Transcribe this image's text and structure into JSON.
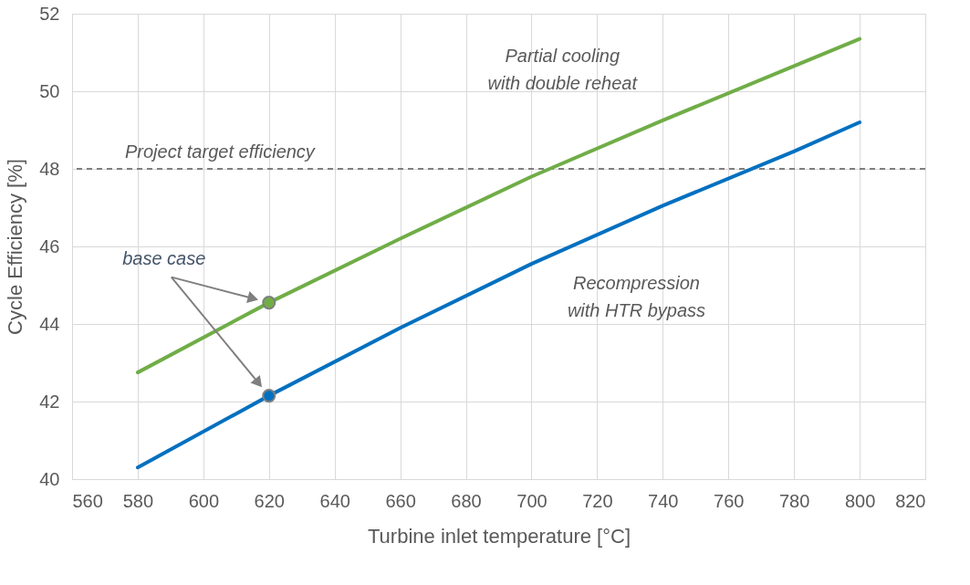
{
  "chart_data": {
    "type": "line",
    "xlabel": "Turbine inlet temperature  [°C]",
    "ylabel": "Cycle Efficiency [%]",
    "xlim": [
      560,
      820
    ],
    "xticks": [
      560,
      580,
      600,
      620,
      640,
      660,
      680,
      700,
      720,
      740,
      760,
      780,
      800,
      820
    ],
    "ylim": [
      40,
      52
    ],
    "yticks": [
      40,
      42,
      44,
      46,
      48,
      50,
      52
    ],
    "grid": true,
    "marker": "none",
    "line_style": "solid",
    "x": [
      580,
      620,
      660,
      700,
      740,
      780,
      800
    ],
    "series": [
      {
        "name": "Partial cooling\nwith double reheat",
        "color": "#70ad47",
        "values": [
          42.75,
          44.55,
          46.2,
          47.8,
          49.25,
          50.65,
          51.35
        ]
      },
      {
        "name": "Recompression\nwith HTR bypass",
        "color": "#0070c0",
        "values": [
          40.3,
          42.15,
          43.9,
          45.55,
          47.05,
          48.45,
          49.2
        ]
      },
      {
        "type": "scatter",
        "marker": "circle",
        "x": [
          620,
          620
        ],
        "values": [
          44.55,
          42.15
        ],
        "colors": [
          "#70ad47",
          "#0070c0"
        ]
      }
    ],
    "ref_lines": [
      {
        "axis": "y",
        "value": 48,
        "label": "Project target efficiency",
        "color": "#595959",
        "line_style": "dashed"
      }
    ],
    "annotations": [
      "base case"
    ]
  }
}
